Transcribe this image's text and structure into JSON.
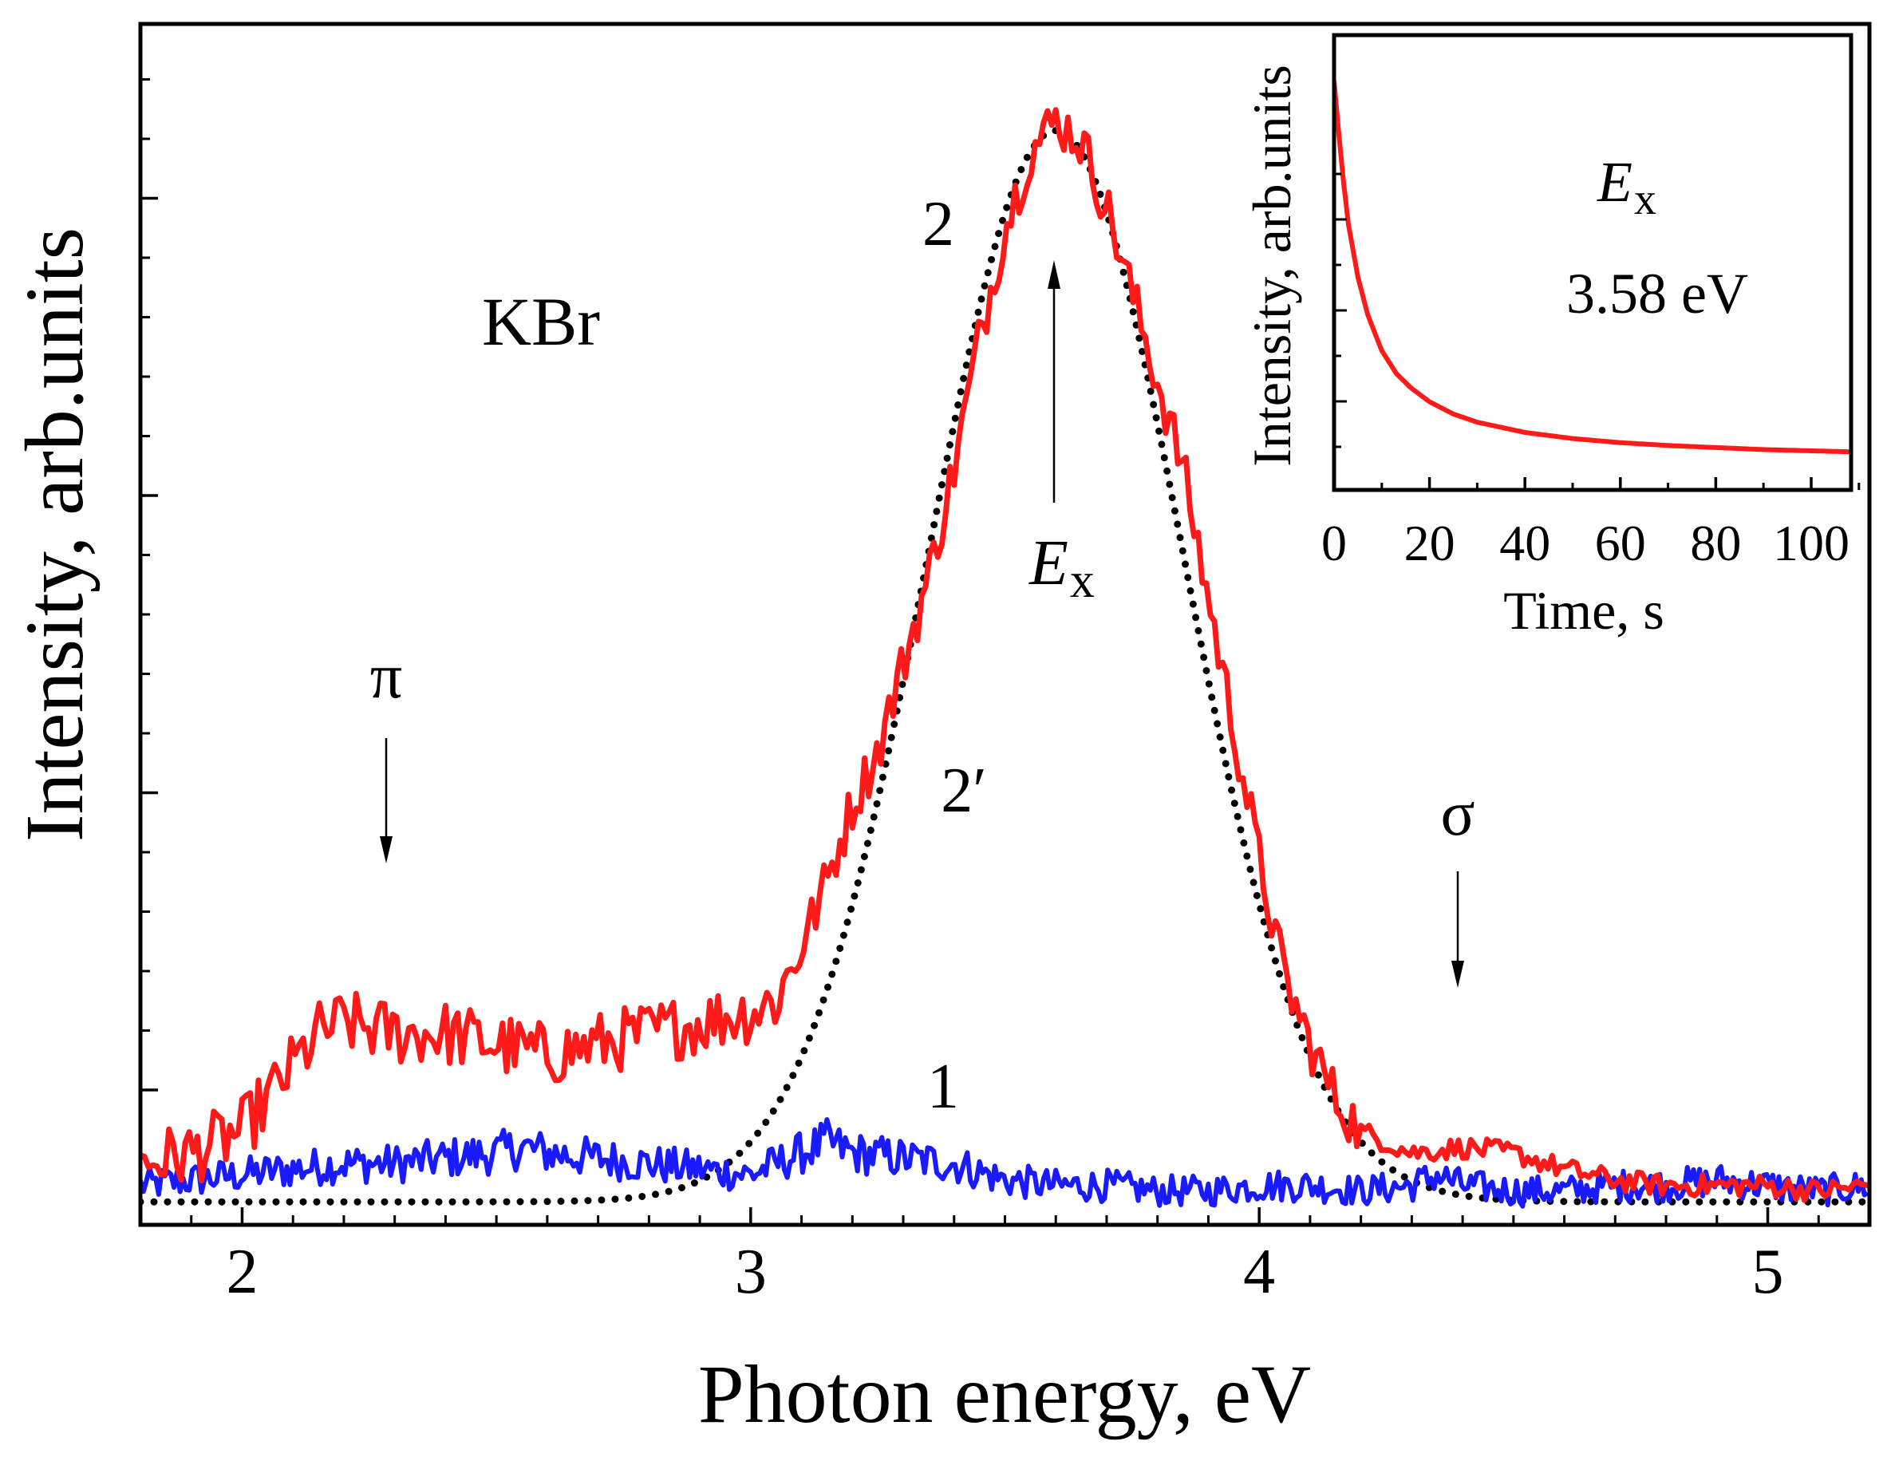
{
  "chart_data": [
    {
      "type": "line",
      "id": "main",
      "title": "",
      "xlabel": "Photon energy, eV",
      "ylabel": "Intensity, arb.units",
      "xlim": [
        1.8,
        5.2
      ],
      "ylim": [
        0,
        1.0
      ],
      "xticks": [
        2,
        3,
        4,
        5
      ],
      "xtick_labels": [
        "2",
        "3",
        "4",
        "5"
      ],
      "y_tick_labels_shown": false,
      "series": [
        {
          "name": "1",
          "color": "#1a1aff",
          "style": "solid",
          "x": [
            1.8,
            1.9,
            2.0,
            2.1,
            2.2,
            2.3,
            2.4,
            2.5,
            2.55,
            2.6,
            2.7,
            2.8,
            2.9,
            3.0,
            3.05,
            3.1,
            3.15,
            3.2,
            3.3,
            3.4,
            3.5,
            3.6,
            3.7,
            3.8,
            3.9,
            4.0,
            4.1,
            4.2,
            4.3,
            4.35,
            4.4,
            4.5,
            4.6,
            4.7,
            4.8,
            4.9,
            5.0,
            5.1,
            5.2
          ],
          "y": [
            0.02,
            0.025,
            0.03,
            0.035,
            0.04,
            0.04,
            0.045,
            0.05,
            0.055,
            0.05,
            0.045,
            0.04,
            0.035,
            0.03,
            0.04,
            0.05,
            0.06,
            0.05,
            0.045,
            0.04,
            0.025,
            0.02,
            0.02,
            0.015,
            0.015,
            0.02,
            0.02,
            0.015,
            0.02,
            0.03,
            0.02,
            0.015,
            0.015,
            0.02,
            0.02,
            0.025,
            0.02,
            0.015,
            0.02
          ]
        },
        {
          "name": "2",
          "color": "#ff1a1a",
          "style": "solid",
          "x": [
            1.8,
            1.9,
            2.0,
            2.05,
            2.1,
            2.15,
            2.2,
            2.3,
            2.4,
            2.5,
            2.6,
            2.7,
            2.8,
            2.9,
            3.0,
            3.05,
            3.1,
            3.15,
            3.2,
            3.25,
            3.3,
            3.35,
            3.4,
            3.45,
            3.5,
            3.55,
            3.6,
            3.65,
            3.7,
            3.75,
            3.8,
            3.85,
            3.9,
            3.95,
            4.0,
            4.05,
            4.1,
            4.15,
            4.2,
            4.3,
            4.4,
            4.5,
            4.6,
            4.7,
            4.8,
            4.9,
            5.0,
            5.1,
            5.2
          ],
          "y": [
            0.04,
            0.05,
            0.07,
            0.1,
            0.13,
            0.16,
            0.17,
            0.16,
            0.16,
            0.15,
            0.14,
            0.15,
            0.16,
            0.17,
            0.18,
            0.19,
            0.24,
            0.3,
            0.37,
            0.42,
            0.5,
            0.58,
            0.68,
            0.8,
            0.9,
            0.97,
            1.0,
            0.98,
            0.92,
            0.84,
            0.76,
            0.68,
            0.56,
            0.44,
            0.32,
            0.21,
            0.15,
            0.1,
            0.07,
            0.05,
            0.055,
            0.05,
            0.035,
            0.025,
            0.02,
            0.02,
            0.02,
            0.015,
            0.02
          ]
        },
        {
          "name": "2′",
          "color": "#000000",
          "style": "dotted",
          "gaussian": {
            "center": 3.6,
            "sigma": 0.25,
            "amplitude": 0.985,
            "baseline": 0.005
          }
        }
      ],
      "annotations": [
        {
          "id": "sample",
          "text": "KBr"
        },
        {
          "id": "pi",
          "text": "π"
        },
        {
          "id": "sigma",
          "text": "σ"
        },
        {
          "id": "ex-main",
          "text": "E",
          "subscript": "x"
        },
        {
          "id": "label-2",
          "text": "2"
        },
        {
          "id": "label-2prime",
          "text": "2′"
        },
        {
          "id": "label-1",
          "text": "1"
        }
      ]
    },
    {
      "type": "line",
      "id": "inset",
      "title": "",
      "xlabel": "Time, s",
      "ylabel": "Intensity, arb.units",
      "xlim": [
        0,
        110
      ],
      "ylim": [
        0,
        1.0
      ],
      "xticks": [
        0,
        20,
        40,
        60,
        80,
        100
      ],
      "xtick_labels": [
        "0",
        "20",
        "40",
        "60",
        "80",
        "100"
      ],
      "y_tick_labels_shown": false,
      "series": [
        {
          "name": "decay",
          "color": "#ff1a1a",
          "style": "solid",
          "x": [
            0,
            1,
            2,
            3,
            5,
            7,
            10,
            13,
            16,
            20,
            25,
            30,
            40,
            50,
            60,
            70,
            80,
            90,
            100,
            110
          ],
          "y": [
            0.95,
            0.82,
            0.7,
            0.6,
            0.47,
            0.38,
            0.29,
            0.235,
            0.2,
            0.165,
            0.135,
            0.115,
            0.09,
            0.075,
            0.065,
            0.058,
            0.053,
            0.048,
            0.045,
            0.042
          ]
        }
      ],
      "annotations": [
        {
          "id": "ex-inset",
          "text": "E",
          "subscript": "x"
        },
        {
          "id": "energy",
          "text": "3.58 eV"
        }
      ]
    }
  ]
}
